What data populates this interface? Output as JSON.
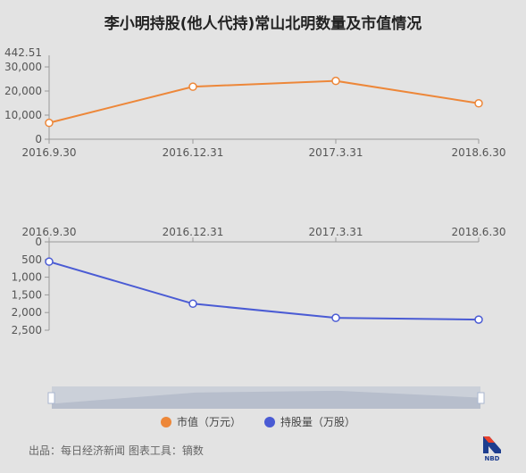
{
  "title": "李小明持股(他人代持)常山北明数量及市值情况",
  "source": "出品：每日经济新闻 图表工具：镝数",
  "logo_text": "NBD",
  "colors": {
    "market_value": "#ed8739",
    "shares": "#4a5bd4",
    "axis": "#999999",
    "zoom_fill": "#c4cad6",
    "zoom_handle": "#a9b6cf"
  },
  "chart_data": [
    {
      "type": "line",
      "x": [
        "2016.9.30",
        "2016.12.31",
        "2017.3.31",
        "2018.6.30"
      ],
      "series": [
        {
          "name": "市值（万元）",
          "values": [
            6800,
            21800,
            24200,
            14900
          ]
        }
      ],
      "ylim": [
        0,
        30000
      ],
      "yticks": [
        "0",
        "10,000",
        "20,000",
        "30,000"
      ],
      "ymax_label": "442.51"
    },
    {
      "type": "line",
      "x": [
        "2016.9.30",
        "2016.12.31",
        "2017.3.31",
        "2018.6.30"
      ],
      "series": [
        {
          "name": "持股量（万股）",
          "values": [
            560,
            1750,
            2150,
            2200
          ]
        }
      ],
      "ylim": [
        0,
        2500
      ],
      "y_inverted": true,
      "yticks": [
        "0",
        "500",
        "1,000",
        "1,500",
        "2,000",
        "2,500"
      ]
    }
  ],
  "legend": [
    {
      "label": "市值（万元）"
    },
    {
      "label": "持股量（万股）"
    }
  ]
}
